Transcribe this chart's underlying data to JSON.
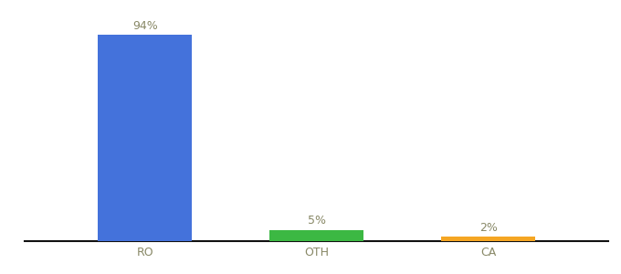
{
  "categories": [
    "RO",
    "OTH",
    "CA"
  ],
  "values": [
    94,
    5,
    2
  ],
  "bar_colors": [
    "#4472db",
    "#3cb843",
    "#f5a623"
  ],
  "labels": [
    "94%",
    "5%",
    "2%"
  ],
  "ylim": [
    0,
    100
  ],
  "background_color": "#ffffff",
  "label_fontsize": 9,
  "tick_fontsize": 9,
  "label_color": "#888866",
  "bar_width": 0.55
}
